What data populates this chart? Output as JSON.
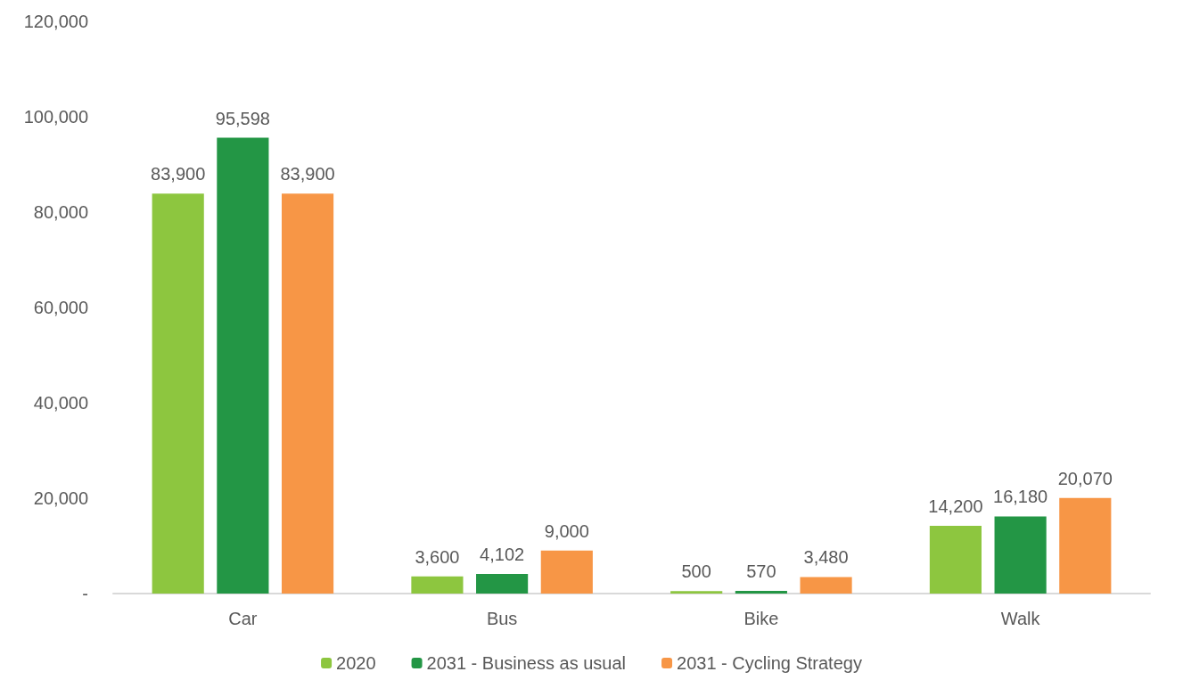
{
  "chart_data": {
    "type": "bar",
    "categories": [
      "Car",
      "Bus",
      "Bike",
      "Walk"
    ],
    "series": [
      {
        "name": "2020",
        "color": "#8dc63f",
        "values": [
          83900,
          3600,
          500,
          14200
        ],
        "value_labels": [
          "83,900",
          "3,600",
          "500",
          "14,200"
        ]
      },
      {
        "name": "2031 - Business as usual",
        "color": "#239645",
        "values": [
          95598,
          4102,
          570,
          16180
        ],
        "value_labels": [
          "95,598",
          "4,102",
          "570",
          "16,180"
        ]
      },
      {
        "name": "2031 - Cycling Strategy",
        "color": "#f79646",
        "values": [
          83900,
          9000,
          3480,
          20070
        ],
        "value_labels": [
          "83,900",
          "9,000",
          "3,480",
          "20,070"
        ]
      }
    ],
    "ylim": [
      0,
      120000
    ],
    "yticks": [
      {
        "value": 0,
        "label": "-"
      },
      {
        "value": 20000,
        "label": "20,000"
      },
      {
        "value": 40000,
        "label": "40,000"
      },
      {
        "value": 60000,
        "label": "60,000"
      },
      {
        "value": 80000,
        "label": "80,000"
      },
      {
        "value": 100000,
        "label": "100,000"
      },
      {
        "value": 120000,
        "label": "120,000"
      }
    ],
    "grid": false,
    "legend": "bottom"
  }
}
